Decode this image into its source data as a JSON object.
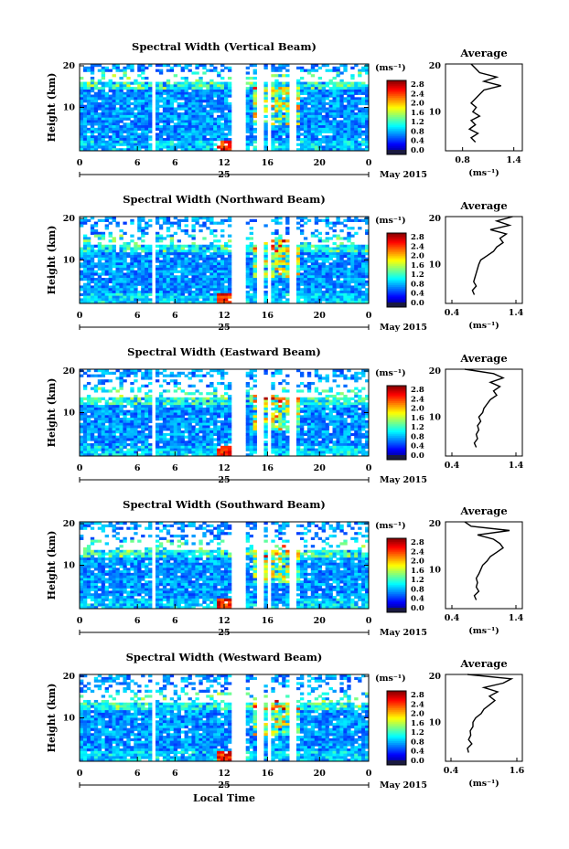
{
  "chart_data": [
    {
      "type": "heatmap",
      "title": "Spectral Width (Vertical Beam)",
      "ylabel": "Height (km)",
      "x_ticks": [
        "0",
        "6",
        "6",
        "12",
        "16",
        "20",
        "0"
      ],
      "y_ticks": [
        "20",
        "10"
      ],
      "xlim": [
        0,
        24
      ],
      "ylim": [
        0,
        20
      ],
      "date_label": "25",
      "month_label": "May 2015",
      "colorbar": {
        "unit": "(ms⁻¹)",
        "ticks": [
          "2.8",
          "2.4",
          "2.0",
          "1.6",
          "1.2",
          "0.8",
          "0.4",
          "0.0"
        ],
        "range": [
          0.0,
          2.8
        ]
      },
      "average": {
        "title": "Average",
        "xlabel": "(ms⁻¹)",
        "x_ticks": [
          "0.8",
          "1.4"
        ],
        "xlim": [
          0.6,
          1.5
        ],
        "height_km": [
          2,
          3,
          4,
          5,
          6,
          7,
          8,
          9,
          10,
          11,
          12,
          13,
          14,
          15,
          16,
          17,
          18,
          19,
          20
        ],
        "value": [
          0.95,
          0.9,
          0.98,
          0.88,
          0.95,
          0.9,
          1.0,
          0.92,
          0.96,
          0.9,
          0.95,
          1.0,
          1.05,
          1.25,
          1.05,
          1.2,
          1.0,
          0.95,
          0.9
        ]
      }
    },
    {
      "type": "heatmap",
      "title": "Spectral Width (Northward Beam)",
      "ylabel": "Height (km)",
      "x_ticks": [
        "0",
        "6",
        "6",
        "12",
        "16",
        "20",
        "0"
      ],
      "y_ticks": [
        "20",
        "10"
      ],
      "xlim": [
        0,
        24
      ],
      "ylim": [
        0,
        20
      ],
      "date_label": "25",
      "month_label": "May 2015",
      "colorbar": {
        "unit": "(ms⁻¹)",
        "ticks": [
          "2.8",
          "2.4",
          "2.0",
          "1.6",
          "1.2",
          "0.8",
          "0.4",
          "0.0"
        ],
        "range": [
          0.0,
          2.8
        ]
      },
      "average": {
        "title": "Average",
        "xlabel": "(ms⁻¹)",
        "x_ticks": [
          "0.4",
          "1.4"
        ],
        "xlim": [
          0.3,
          1.5
        ],
        "height_km": [
          2,
          3,
          4,
          5,
          6,
          7,
          8,
          9,
          10,
          11,
          12,
          13,
          14,
          15,
          16,
          17,
          18,
          19,
          20
        ],
        "value": [
          0.75,
          0.72,
          0.78,
          0.74,
          0.76,
          0.78,
          0.8,
          0.82,
          0.85,
          0.95,
          1.05,
          1.1,
          1.2,
          1.15,
          1.25,
          1.0,
          1.3,
          1.1,
          1.35
        ]
      }
    },
    {
      "type": "heatmap",
      "title": "Spectral Width (Eastward Beam)",
      "ylabel": "Height (km)",
      "x_ticks": [
        "0",
        "6",
        "6",
        "12",
        "16",
        "20",
        "0"
      ],
      "y_ticks": [
        "20",
        "10"
      ],
      "xlim": [
        0,
        24
      ],
      "ylim": [
        0,
        20
      ],
      "date_label": "25",
      "month_label": "May 2015",
      "colorbar": {
        "unit": "(ms⁻¹)",
        "ticks": [
          "2.8",
          "2.4",
          "2.0",
          "1.6",
          "1.2",
          "0.8",
          "0.4",
          "0.0"
        ],
        "range": [
          0.0,
          2.8
        ]
      },
      "average": {
        "title": "Average",
        "xlabel": "",
        "x_ticks": [
          "0.4",
          "1.4"
        ],
        "xlim": [
          0.3,
          1.5
        ],
        "height_km": [
          2,
          3,
          4,
          5,
          6,
          7,
          8,
          9,
          10,
          11,
          12,
          13,
          14,
          15,
          16,
          17,
          18,
          19,
          20
        ],
        "value": [
          0.78,
          0.75,
          0.8,
          0.78,
          0.82,
          0.8,
          0.85,
          0.82,
          0.88,
          0.9,
          0.95,
          1.0,
          1.1,
          1.05,
          1.15,
          1.0,
          1.2,
          1.05,
          0.6
        ]
      }
    },
    {
      "type": "heatmap",
      "title": "Spectral Width (Southward Beam)",
      "ylabel": "Height (km)",
      "x_ticks": [
        "0",
        "6",
        "6",
        "12",
        "16",
        "20",
        "0"
      ],
      "y_ticks": [
        "20",
        "10"
      ],
      "xlim": [
        0,
        24
      ],
      "ylim": [
        0,
        20
      ],
      "date_label": "25",
      "month_label": "May 2015",
      "colorbar": {
        "unit": "(ms⁻¹)",
        "ticks": [
          "2.8",
          "2.4",
          "2.0",
          "1.6",
          "1.2",
          "0.8",
          "0.4",
          "0.0"
        ],
        "range": [
          0.0,
          2.8
        ]
      },
      "average": {
        "title": "Average",
        "xlabel": "(ms⁻¹)",
        "x_ticks": [
          "0.4",
          "1.4"
        ],
        "xlim": [
          0.3,
          1.5
        ],
        "height_km": [
          2,
          3,
          4,
          5,
          6,
          7,
          8,
          9,
          10,
          11,
          12,
          13,
          14,
          15,
          16,
          17,
          18,
          19,
          20
        ],
        "value": [
          0.78,
          0.75,
          0.82,
          0.78,
          0.8,
          0.78,
          0.82,
          0.85,
          0.88,
          0.95,
          1.0,
          1.1,
          1.2,
          1.15,
          1.05,
          0.8,
          1.3,
          0.7,
          0.6
        ]
      }
    },
    {
      "type": "heatmap",
      "title": "Spectral Width (Westward Beam)",
      "ylabel": "Height (km)",
      "x_ticks": [
        "0",
        "6",
        "6",
        "12",
        "16",
        "20",
        "0"
      ],
      "y_ticks": [
        "20",
        "10"
      ],
      "xlim": [
        0,
        24
      ],
      "ylim": [
        0,
        20
      ],
      "date_label": "25",
      "month_label": "May 2015",
      "xlabel": "Local Time",
      "colorbar": {
        "unit": "(ms⁻¹)",
        "ticks": [
          "2.8",
          "2.4",
          "2.0",
          "1.6",
          "1.2",
          "0.8",
          "0.4",
          "0.0"
        ],
        "range": [
          0.0,
          2.8
        ]
      },
      "average": {
        "title": "Average",
        "xlabel": "(ms⁻¹)",
        "x_ticks": [
          "0.4",
          "1.6"
        ],
        "xlim": [
          0.3,
          1.7
        ],
        "height_km": [
          2,
          3,
          4,
          5,
          6,
          7,
          8,
          9,
          10,
          11,
          12,
          13,
          14,
          15,
          16,
          17,
          18,
          19,
          20
        ],
        "value": [
          0.72,
          0.7,
          0.78,
          0.72,
          0.76,
          0.75,
          0.8,
          0.8,
          0.85,
          0.95,
          1.0,
          1.1,
          1.2,
          1.1,
          1.25,
          1.0,
          1.35,
          1.5,
          0.7
        ]
      }
    }
  ]
}
